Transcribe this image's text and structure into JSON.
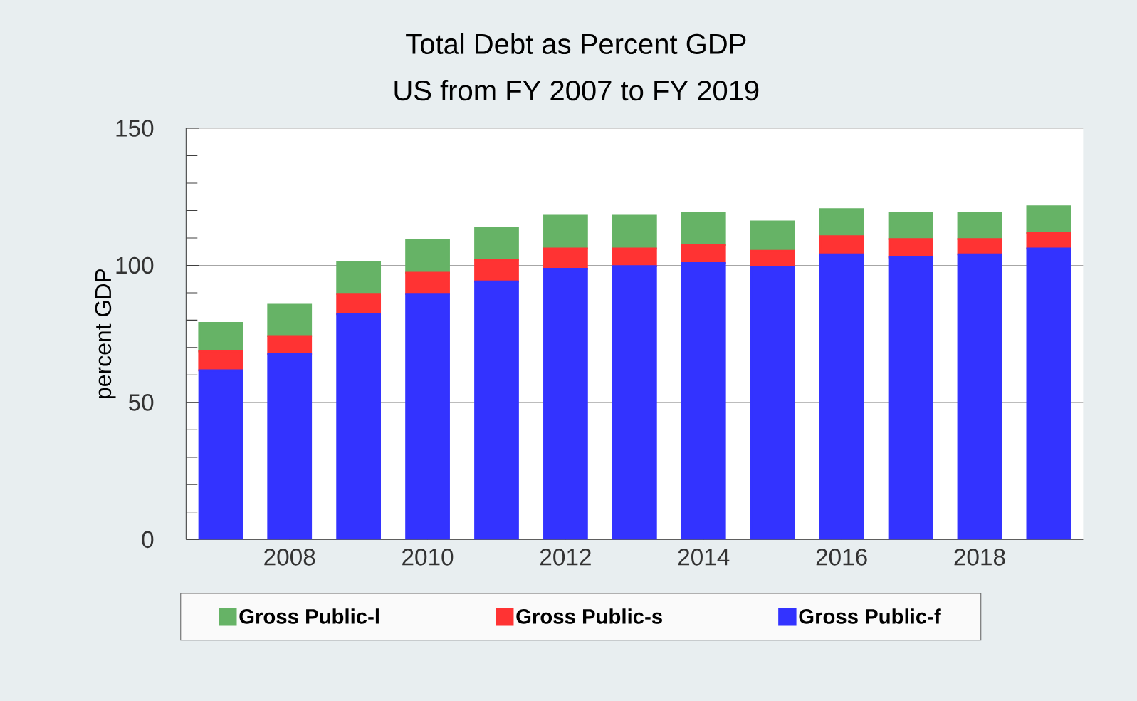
{
  "chart_data": {
    "type": "bar",
    "title": "Total Debt as Percent GDP",
    "subtitle": "US from FY 2007 to FY 2019",
    "ylabel": "percent GDP",
    "x": [
      2007,
      2008,
      2009,
      2010,
      2011,
      2012,
      2013,
      2014,
      2015,
      2016,
      2017,
      2018,
      2019
    ],
    "xlim": [
      2006.5,
      2019.5
    ],
    "xticks": [
      2008,
      2010,
      2012,
      2014,
      2016,
      2018
    ],
    "ylim": [
      0,
      150
    ],
    "yticks": [
      0,
      50,
      100,
      150
    ],
    "stacked": true,
    "grid": "y",
    "legend": "bottom",
    "series": [
      {
        "name": "Gross Public-f",
        "color": "#3333ff",
        "values": [
          61.7,
          67.6,
          82.2,
          89.6,
          94.1,
          98.7,
          99.7,
          100.8,
          99.5,
          104.0,
          102.9,
          104.0,
          106.1
        ]
      },
      {
        "name": "Gross Public-s",
        "color": "#ff3333",
        "values": [
          6.9,
          6.6,
          7.4,
          7.7,
          8.0,
          7.4,
          6.4,
          6.6,
          5.8,
          6.6,
          6.7,
          5.6,
          5.6
        ]
      },
      {
        "name": "Gross Public-l",
        "color": "#66b366",
        "values": [
          10.4,
          11.4,
          11.7,
          12.0,
          11.5,
          12.0,
          12.0,
          11.7,
          10.7,
          9.9,
          9.5,
          9.5,
          9.8
        ]
      }
    ]
  }
}
